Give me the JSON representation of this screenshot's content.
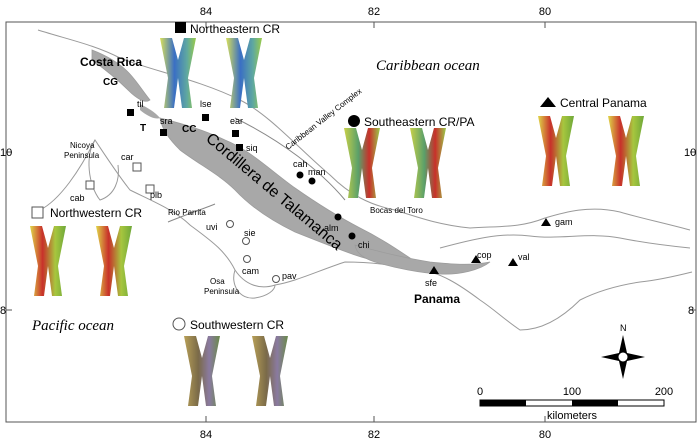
{
  "map": {
    "axes": {
      "lon_top": [
        "84",
        "82",
        "80"
      ],
      "lon_bottom": [
        "84",
        "82",
        "80"
      ],
      "lat_left": [
        "10",
        "8"
      ],
      "lat_right": [
        "10",
        "8"
      ]
    },
    "oceans": {
      "caribbean": "Caribbean ocean",
      "pacific": "Pacific ocean"
    },
    "places": {
      "costa_rica": "Costa Rica",
      "panama": "Panama",
      "cg": "CG",
      "t": "T",
      "cc": "CC",
      "nicoya_1": "Nicoya",
      "nicoya_2": "Peninsula",
      "osa_1": "Osa",
      "osa_2": "Peninsula",
      "rio_parrita": "Rio Parrita",
      "bocas": "Bocas del Toro",
      "caribbean_valley": "Caribbean Valley Complex",
      "talamanca": "Cordillera de Talamanca"
    },
    "regions": {
      "northeastern": "Northeastern CR",
      "southeastern": "Southeastern CR/PA",
      "central_panama": "Central Panama",
      "northwestern": "Northwestern CR",
      "southwestern": "Southwestern CR"
    },
    "sites": {
      "til": "til",
      "sra": "sra",
      "lse": "lse",
      "ear": "ear",
      "siq": "siq",
      "cah": "cah",
      "man": "man",
      "alm": "alm",
      "chi": "chi",
      "car": "car",
      "cab": "cab",
      "plb": "plb",
      "uvi": "uvi",
      "sie": "sie",
      "cam": "cam",
      "pav": "pav",
      "sfe": "sfe",
      "cop": "cop",
      "val": "val",
      "gam": "gam"
    },
    "scale": {
      "ticks": [
        "0",
        "100",
        "200"
      ],
      "unit": "kilometers"
    },
    "compass": "N",
    "colors": {
      "range": "#a8a8a8",
      "coast": "#9a9a9a",
      "red": "#c0392b",
      "green": "#8fbf3f",
      "yellow": "#d8d94a",
      "blue": "#3a6fc4"
    }
  }
}
